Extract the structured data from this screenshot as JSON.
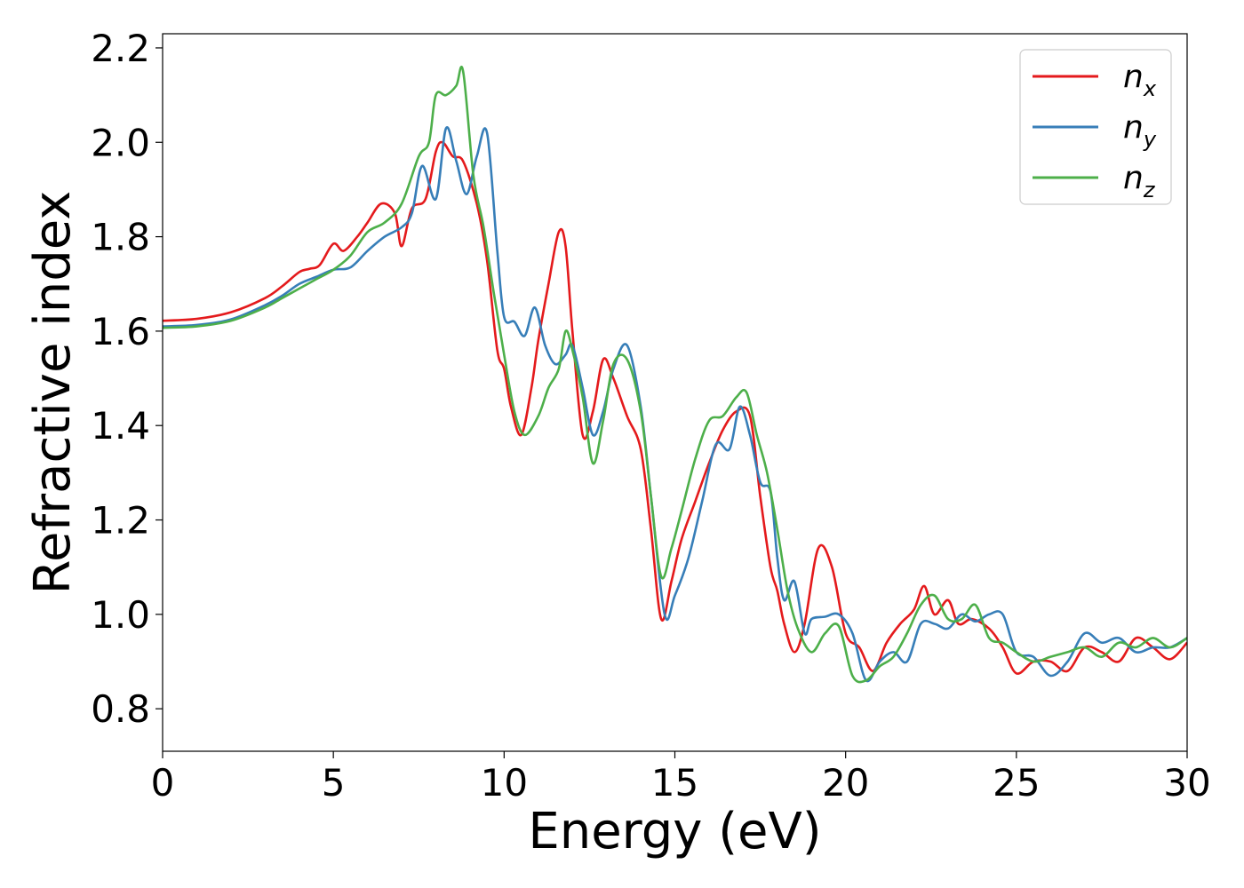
{
  "chart_data": {
    "type": "line",
    "title": "",
    "xlabel": "Energy (eV)",
    "ylabel": "Refractive index",
    "xlim": [
      0,
      30
    ],
    "ylim": [
      0.71,
      2.23
    ],
    "xticks": [
      0,
      5,
      10,
      15,
      20,
      25,
      30
    ],
    "yticks": [
      0.8,
      1.0,
      1.2,
      1.4,
      1.6,
      1.8,
      2.0,
      2.2
    ],
    "ytick_labels": [
      "0.8",
      "1.0",
      "1.2",
      "1.4",
      "1.6",
      "1.8",
      "2.0",
      "2.2"
    ],
    "grid": false,
    "legend_position": "top-right",
    "series": [
      {
        "name": "n_x",
        "label_base": "n",
        "label_sub": "x",
        "color": "#e41a1c",
        "x": [
          0,
          1,
          2,
          3,
          3.5,
          4,
          4.3,
          4.6,
          5,
          5.3,
          5.7,
          6,
          6.4,
          6.8,
          7,
          7.3,
          7.7,
          8,
          8.2,
          8.5,
          8.8,
          9.2,
          9.5,
          9.8,
          10,
          10.2,
          10.5,
          10.8,
          11,
          11.3,
          11.6,
          11.8,
          12,
          12.3,
          12.6,
          12.9,
          13.2,
          13.6,
          14,
          14.3,
          14.6,
          14.9,
          15.2,
          15.6,
          16,
          16.4,
          16.8,
          17.2,
          17.5,
          17.8,
          18,
          18.2,
          18.5,
          18.8,
          19.2,
          19.6,
          20,
          20.4,
          20.8,
          21.2,
          21.6,
          22,
          22.3,
          22.6,
          23,
          23.3,
          23.7,
          24.2,
          24.6,
          25,
          25.5,
          26,
          26.5,
          27,
          27.5,
          28,
          28.5,
          29,
          29.5,
          30
        ],
        "y": [
          1.622,
          1.626,
          1.64,
          1.67,
          1.695,
          1.725,
          1.732,
          1.74,
          1.785,
          1.77,
          1.8,
          1.83,
          1.87,
          1.85,
          1.78,
          1.86,
          1.88,
          1.98,
          2.0,
          1.97,
          1.96,
          1.87,
          1.75,
          1.56,
          1.52,
          1.44,
          1.38,
          1.48,
          1.58,
          1.7,
          1.81,
          1.78,
          1.6,
          1.38,
          1.43,
          1.54,
          1.5,
          1.42,
          1.35,
          1.18,
          0.99,
          1.07,
          1.16,
          1.24,
          1.32,
          1.39,
          1.43,
          1.42,
          1.25,
          1.1,
          1.05,
          0.98,
          0.92,
          0.98,
          1.14,
          1.1,
          0.96,
          0.93,
          0.88,
          0.94,
          0.98,
          1.01,
          1.06,
          1.0,
          1.03,
          0.98,
          0.99,
          0.97,
          0.93,
          0.875,
          0.9,
          0.9,
          0.88,
          0.93,
          0.92,
          0.9,
          0.95,
          0.93,
          0.905,
          0.94
        ]
      },
      {
        "name": "n_y",
        "label_base": "n",
        "label_sub": "y",
        "color": "#377eb8",
        "x": [
          0,
          1,
          2,
          3,
          3.5,
          4,
          4.5,
          5,
          5.5,
          6,
          6.5,
          7,
          7.3,
          7.6,
          8,
          8.3,
          8.6,
          8.9,
          9.2,
          9.5,
          9.8,
          10,
          10.3,
          10.6,
          10.9,
          11.2,
          11.5,
          11.8,
          12,
          12.3,
          12.6,
          12.9,
          13.2,
          13.6,
          14,
          14.3,
          14.7,
          15,
          15.4,
          15.8,
          16.2,
          16.6,
          16.9,
          17.2,
          17.5,
          17.8,
          18,
          18.2,
          18.5,
          18.8,
          19,
          19.4,
          19.8,
          20.2,
          20.6,
          21,
          21.4,
          21.8,
          22.2,
          22.6,
          23,
          23.4,
          23.8,
          24.2,
          24.6,
          25,
          25.5,
          26,
          26.5,
          27,
          27.5,
          28,
          28.5,
          29,
          29.5,
          30
        ],
        "y": [
          1.61,
          1.613,
          1.625,
          1.655,
          1.675,
          1.7,
          1.715,
          1.73,
          1.735,
          1.77,
          1.8,
          1.82,
          1.85,
          1.95,
          1.88,
          2.03,
          1.96,
          1.89,
          1.97,
          2.02,
          1.77,
          1.63,
          1.62,
          1.59,
          1.65,
          1.57,
          1.53,
          1.55,
          1.57,
          1.48,
          1.38,
          1.43,
          1.52,
          1.57,
          1.44,
          1.25,
          1.0,
          1.04,
          1.12,
          1.24,
          1.36,
          1.35,
          1.44,
          1.38,
          1.28,
          1.26,
          1.12,
          1.03,
          1.07,
          0.96,
          0.99,
          0.995,
          1.0,
          0.96,
          0.86,
          0.9,
          0.92,
          0.9,
          0.98,
          0.98,
          0.97,
          1.0,
          0.985,
          1.0,
          1.0,
          0.92,
          0.91,
          0.87,
          0.9,
          0.96,
          0.94,
          0.95,
          0.92,
          0.93,
          0.93,
          0.95
        ]
      },
      {
        "name": "n_z",
        "label_base": "n",
        "label_sub": "z",
        "color": "#4daf4a",
        "x": [
          0,
          1,
          2,
          3,
          3.5,
          4,
          4.5,
          5,
          5.5,
          6,
          6.5,
          7,
          7.5,
          7.8,
          8,
          8.3,
          8.6,
          8.8,
          9.1,
          9.4,
          9.7,
          10,
          10.3,
          10.6,
          11,
          11.3,
          11.6,
          11.8,
          12,
          12.3,
          12.6,
          12.9,
          13.2,
          13.6,
          14,
          14.3,
          14.6,
          14.9,
          15.2,
          15.6,
          16,
          16.4,
          16.8,
          17.1,
          17.4,
          17.7,
          18,
          18.3,
          18.6,
          19,
          19.4,
          19.8,
          20.2,
          20.6,
          21,
          21.4,
          21.8,
          22.2,
          22.6,
          23,
          23.4,
          23.8,
          24.2,
          24.6,
          25,
          25.5,
          26,
          26.5,
          27,
          27.5,
          28,
          28.5,
          29,
          29.5,
          30
        ],
        "y": [
          1.607,
          1.61,
          1.622,
          1.65,
          1.67,
          1.69,
          1.71,
          1.73,
          1.76,
          1.81,
          1.83,
          1.87,
          1.97,
          2.0,
          2.1,
          2.1,
          2.12,
          2.15,
          1.93,
          1.82,
          1.68,
          1.55,
          1.43,
          1.38,
          1.42,
          1.48,
          1.52,
          1.6,
          1.56,
          1.46,
          1.32,
          1.41,
          1.53,
          1.54,
          1.43,
          1.25,
          1.08,
          1.14,
          1.22,
          1.33,
          1.41,
          1.42,
          1.46,
          1.47,
          1.38,
          1.3,
          1.18,
          1.05,
          0.97,
          0.92,
          0.96,
          0.975,
          0.87,
          0.86,
          0.89,
          0.91,
          0.96,
          1.02,
          1.04,
          0.99,
          0.99,
          1.02,
          0.95,
          0.94,
          0.92,
          0.9,
          0.91,
          0.92,
          0.93,
          0.91,
          0.94,
          0.93,
          0.95,
          0.93,
          0.95
        ]
      }
    ]
  }
}
